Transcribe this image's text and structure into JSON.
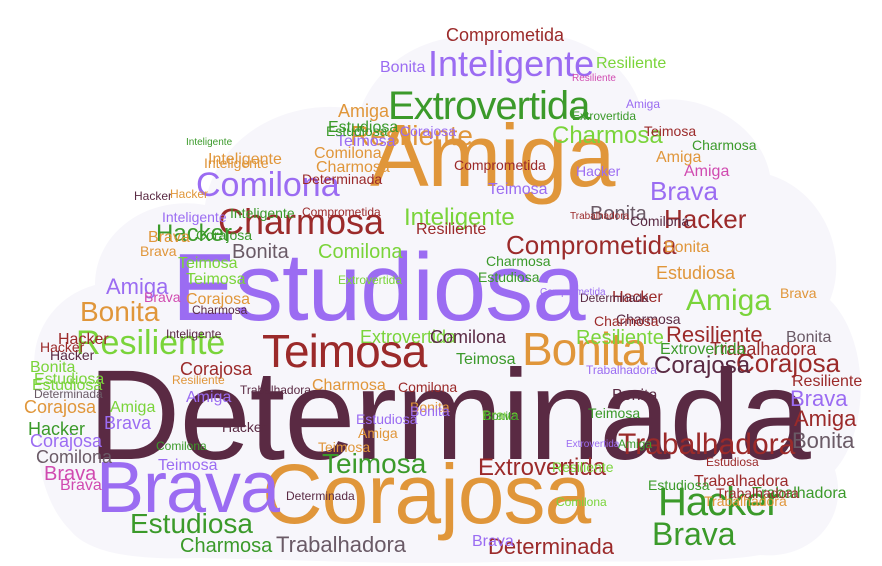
{
  "colors": {
    "maroon": "#5a2a43",
    "orange": "#e0963a",
    "violet": "#9b6cf2",
    "green": "#3b9a2a",
    "lime": "#7ad43a",
    "red": "#9b2a2a",
    "gray": "#6a5a66",
    "pink": "#d04ab0"
  },
  "words": [
    {
      "text": "Determinada",
      "color": "maroon"
    },
    {
      "text": "Estudiosa",
      "color": "violet"
    },
    {
      "text": "Amiga",
      "color": "orange"
    },
    {
      "text": "Corajosa",
      "color": "orange"
    },
    {
      "text": "Brava",
      "color": "violet"
    },
    {
      "text": "Teimosa",
      "color": "red"
    },
    {
      "text": "Bonita",
      "color": "orange"
    },
    {
      "text": "Extrovertida",
      "color": "green"
    },
    {
      "text": "Inteligente",
      "color": "violet"
    },
    {
      "text": "Comilona",
      "color": "violet"
    },
    {
      "text": "Charmosa",
      "color": "red"
    },
    {
      "text": "Resiliente",
      "color": "lime"
    },
    {
      "text": "Hacker",
      "color": "green"
    },
    {
      "text": "Trabalhadora",
      "color": "red"
    },
    {
      "text": "Extrovertida",
      "color": "red"
    },
    {
      "text": "Teimosa",
      "color": "green"
    },
    {
      "text": "Estudiosa",
      "color": "green"
    },
    {
      "text": "Brava",
      "color": "green"
    },
    {
      "text": "Determinada",
      "color": "red"
    },
    {
      "text": "Charmosa",
      "color": "green"
    },
    {
      "text": "Trabalhadora",
      "color": "gray"
    },
    {
      "text": "Comprometida",
      "color": "red"
    },
    {
      "text": "Amiga",
      "color": "lime"
    },
    {
      "text": "Corajosa",
      "color": "red"
    },
    {
      "text": "Resiliente",
      "color": "orange"
    },
    {
      "text": "Charmosa",
      "color": "lime"
    },
    {
      "text": "Brava",
      "color": "violet"
    },
    {
      "text": "Hacker",
      "color": "red"
    },
    {
      "text": "Bonita",
      "color": "gray"
    },
    {
      "text": "Comilona",
      "color": "lime"
    },
    {
      "text": "Inteligente",
      "color": "lime"
    },
    {
      "text": "Bonita",
      "color": "orange"
    },
    {
      "text": "Resiliente",
      "color": "lime"
    },
    {
      "text": "Amiga",
      "color": "violet"
    },
    {
      "text": "Comprometida",
      "color": "red"
    },
    {
      "text": "Extrovertida",
      "color": "lime"
    },
    {
      "text": "Comilona",
      "color": "maroon"
    },
    {
      "text": "Bonita",
      "color": "gray"
    },
    {
      "text": "Brava",
      "color": "violet"
    },
    {
      "text": "Amiga",
      "color": "red"
    },
    {
      "text": "Hacker",
      "color": "green"
    },
    {
      "text": "Corajosa",
      "color": "maroon"
    },
    {
      "text": "Resiliente",
      "color": "red"
    },
    {
      "text": "Trabalhadora",
      "color": "red"
    },
    {
      "text": "Estudiosa",
      "color": "orange"
    },
    {
      "text": "Bonita",
      "color": "gray"
    },
    {
      "text": "Teimosa",
      "color": "green"
    },
    {
      "text": "Resiliente",
      "color": "lime"
    },
    {
      "text": "Amiga",
      "color": "orange"
    },
    {
      "text": "Estudiosa",
      "color": "green"
    },
    {
      "text": "Comilona",
      "color": "orange"
    },
    {
      "text": "Charmosa",
      "color": "orange"
    },
    {
      "text": "Brava",
      "color": "pink"
    },
    {
      "text": "Hacker",
      "color": "red"
    },
    {
      "text": "Corajosa",
      "color": "orange"
    },
    {
      "text": "Teimosa",
      "color": "violet"
    },
    {
      "text": "Trabalhadora",
      "color": "green"
    },
    {
      "text": "Brava",
      "color": "pink"
    },
    {
      "text": "Extrovertida",
      "color": "green"
    },
    {
      "text": "Estudiosa",
      "color": "lime"
    },
    {
      "text": "Bonita",
      "color": "orange"
    },
    {
      "text": "Hacker",
      "color": "green"
    },
    {
      "text": "Amiga",
      "color": "orange"
    },
    {
      "text": "Teimosa",
      "color": "red"
    },
    {
      "text": "Resiliente",
      "color": "red"
    },
    {
      "text": "Inteligente",
      "color": "orange"
    },
    {
      "text": "Comilona",
      "color": "gray"
    },
    {
      "text": "Determinada",
      "color": "red"
    },
    {
      "text": "Charmosa",
      "color": "orange"
    },
    {
      "text": "Hacker",
      "color": "maroon"
    },
    {
      "text": "Bonita",
      "color": "violet"
    },
    {
      "text": "Estudiosa",
      "color": "green"
    },
    {
      "text": "Corajosa",
      "color": "red"
    },
    {
      "text": "Comilona",
      "color": "green"
    },
    {
      "text": "Inteligente",
      "color": "violet"
    },
    {
      "text": "Brava",
      "color": "orange"
    },
    {
      "text": "Teimosa",
      "color": "lime"
    },
    {
      "text": "Hacker",
      "color": "maroon"
    },
    {
      "text": "Resiliente",
      "color": "orange"
    },
    {
      "text": "Amiga",
      "color": "violet"
    },
    {
      "text": "Bonita",
      "color": "lime"
    },
    {
      "text": "Brava",
      "color": "violet"
    },
    {
      "text": "Trabalhadora",
      "color": "red"
    },
    {
      "text": "Estudiosa",
      "color": "lime"
    },
    {
      "text": "Teimosa",
      "color": "violet"
    },
    {
      "text": "Charmosa",
      "color": "maroon"
    },
    {
      "text": "Hacker",
      "color": "red"
    },
    {
      "text": "Corajosa",
      "color": "violet"
    },
    {
      "text": "Bonita",
      "color": "gray"
    },
    {
      "text": "Inteligente",
      "color": "maroon"
    },
    {
      "text": "Amiga",
      "color": "pink"
    },
    {
      "text": "Extrovertida",
      "color": "violet"
    },
    {
      "text": "Trabalhadora",
      "color": "red"
    },
    {
      "text": "Brava",
      "color": "pink"
    },
    {
      "text": "Teimosa",
      "color": "lime"
    },
    {
      "text": "Hacker",
      "color": "orange"
    },
    {
      "text": "Charmosa",
      "color": "green"
    },
    {
      "text": "Trabalhadora",
      "color": "maroon"
    },
    {
      "text": "Comprometida",
      "color": "red"
    },
    {
      "text": "Estudiosa",
      "color": "violet"
    },
    {
      "text": "Bonita",
      "color": "orange"
    },
    {
      "text": "Determinada",
      "color": "gray"
    },
    {
      "text": "Inteligente",
      "color": "orange"
    },
    {
      "text": "Comilona",
      "color": "red"
    },
    {
      "text": "Amiga",
      "color": "lime"
    },
    {
      "text": "Brava",
      "color": "orange"
    },
    {
      "text": "Corajosa",
      "color": "orange"
    },
    {
      "text": "Hacker",
      "color": "red"
    },
    {
      "text": "Resiliente",
      "color": "red"
    },
    {
      "text": "Teimosa",
      "color": "violet"
    },
    {
      "text": "Comprometida",
      "color": "red"
    },
    {
      "text": "Bonita",
      "color": "maroon"
    },
    {
      "text": "Charmosa",
      "color": "green"
    },
    {
      "text": "Extrovertida",
      "color": "lime"
    },
    {
      "text": "Trabalhadora",
      "color": "red"
    },
    {
      "text": "Estudiosa",
      "color": "green"
    },
    {
      "text": "Brava",
      "color": "violet"
    },
    {
      "text": "Amiga",
      "color": "orange"
    },
    {
      "text": "Inteligente",
      "color": "green"
    },
    {
      "text": "Comilona",
      "color": "lime"
    },
    {
      "text": "Hacker",
      "color": "maroon"
    },
    {
      "text": "Corajosa",
      "color": "violet"
    },
    {
      "text": "Determinada",
      "color": "maroon"
    },
    {
      "text": "Teimosa",
      "color": "orange"
    },
    {
      "text": "Bonita",
      "color": "violet"
    },
    {
      "text": "Resiliente",
      "color": "lime"
    },
    {
      "text": "Charmosa",
      "color": "red"
    },
    {
      "text": "Brava",
      "color": "lime"
    },
    {
      "text": "Trabalhadora",
      "color": "orange"
    },
    {
      "text": "Estudiosa",
      "color": "red"
    },
    {
      "text": "Amiga",
      "color": "green"
    },
    {
      "text": "Comprometida",
      "color": "violet"
    },
    {
      "text": "Extrovertida",
      "color": "green"
    },
    {
      "text": "Hacker",
      "color": "violet"
    },
    {
      "text": "Inteligente",
      "color": "green"
    },
    {
      "text": "Comilona",
      "color": "maroon"
    },
    {
      "text": "Bonita",
      "color": "green"
    },
    {
      "text": "Corajosa",
      "color": "green"
    },
    {
      "text": "Teimosa",
      "color": "green"
    },
    {
      "text": "Resiliente",
      "color": "pink"
    },
    {
      "text": "Charmosa",
      "color": "maroon"
    },
    {
      "text": "Trabalhadora",
      "color": "violet"
    },
    {
      "text": "Brava",
      "color": "orange"
    },
    {
      "text": "Determinada",
      "color": "maroon"
    },
    {
      "text": "Estudiosa",
      "color": "green"
    },
    {
      "text": "Amiga",
      "color": "violet"
    }
  ]
}
